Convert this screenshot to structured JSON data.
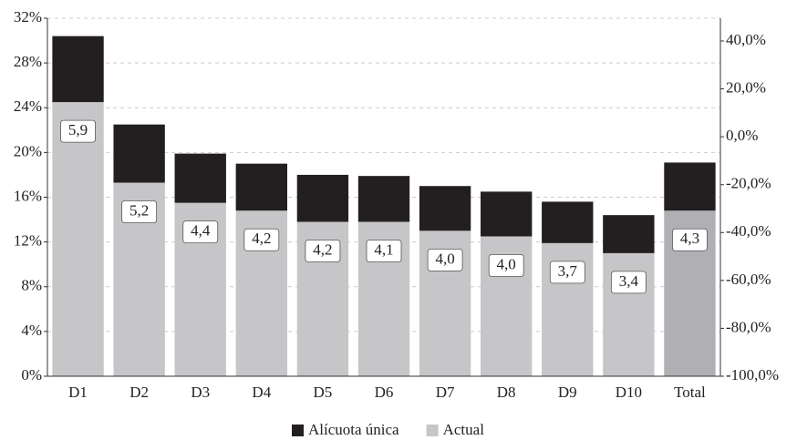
{
  "chart_data": {
    "type": "stacked_bar",
    "categories": [
      "D1",
      "D2",
      "D3",
      "D4",
      "D5",
      "D6",
      "D7",
      "D8",
      "D9",
      "D10",
      "Total"
    ],
    "series": [
      {
        "name": "Alícuota única",
        "color": "#231f20",
        "values": [
          5.9,
          5.2,
          4.4,
          4.2,
          4.2,
          4.1,
          4.0,
          4.0,
          3.7,
          3.4,
          4.3
        ],
        "value_labels": [
          "5,9",
          "5,2",
          "4,4",
          "4,2",
          "4,2",
          "4,1",
          "4,0",
          "4,0",
          "3,7",
          "3,4",
          "4,3"
        ]
      },
      {
        "name": "Actual",
        "color": "#c6c6c8",
        "colors": [
          "#c6c6c8",
          "#c6c6c8",
          "#c6c6c8",
          "#c6c6c8",
          "#c6c6c8",
          "#c6c6c8",
          "#c6c6c8",
          "#c6c6c8",
          "#c6c6c8",
          "#c6c6c8",
          "#b0b0b4"
        ],
        "values": [
          24.5,
          17.3,
          15.5,
          14.8,
          13.8,
          13.8,
          13.0,
          12.5,
          11.9,
          11.0,
          14.8
        ]
      }
    ],
    "ylim": [
      0,
      32
    ],
    "yticks": [
      {
        "value": 0,
        "label": "0%"
      },
      {
        "value": 4,
        "label": "4%"
      },
      {
        "value": 8,
        "label": "8%"
      },
      {
        "value": 12,
        "label": "12%"
      },
      {
        "value": 16,
        "label": "16%"
      },
      {
        "value": 20,
        "label": "20%"
      },
      {
        "value": 24,
        "label": "24%"
      },
      {
        "value": 28,
        "label": "28%"
      },
      {
        "value": 32,
        "label": "32%"
      }
    ],
    "y2lim": [
      -100,
      49.5
    ],
    "y2ticks": [
      {
        "value": -100,
        "label": "-100,0%"
      },
      {
        "value": -80,
        "label": "-80,0%"
      },
      {
        "value": -60,
        "label": "-60,0%"
      },
      {
        "value": -40,
        "label": "-40,0%"
      },
      {
        "value": -20,
        "label": "-20,0%"
      },
      {
        "value": 0,
        "label": "0,0%"
      },
      {
        "value": 20,
        "label": "20,0%"
      },
      {
        "value": 40,
        "label": "40,0%"
      }
    ],
    "grid": true,
    "legend": "bottom"
  }
}
